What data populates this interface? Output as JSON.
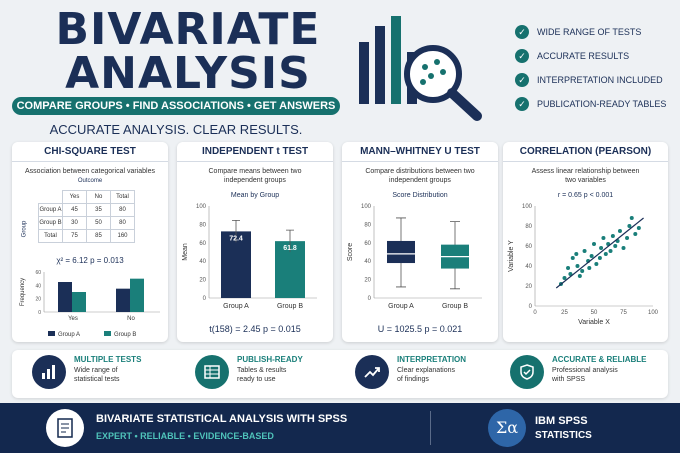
{
  "header": {
    "title_line1": "BIVARIATE",
    "title_line2": "ANALYSIS",
    "pill": "COMPARE GROUPS • FIND ASSOCIATIONS • GET ANSWERS",
    "tagline": "ACCURATE ANALYSIS. CLEAR RESULTS."
  },
  "features": [
    "WIDE RANGE OF TESTS",
    "ACCURATE RESULTS",
    "INTERPRETATION INCLUDED",
    "PUBLICATION-READY TABLES"
  ],
  "colors": {
    "navy": "#1b2f57",
    "teal": "#1a7f7a",
    "footer": "#13284e"
  },
  "cards": {
    "chi": {
      "title": "CHI-SQUARE TEST",
      "subtitle": "Association between categorical variables",
      "outcome": "Outcome",
      "group": "Group",
      "cols": [
        "Yes",
        "No",
        "Total"
      ],
      "rows": [
        {
          "label": "Group A",
          "vals": [
            "45",
            "35",
            "80"
          ]
        },
        {
          "label": "Group B",
          "vals": [
            "30",
            "50",
            "80"
          ]
        },
        {
          "label": "Total",
          "vals": [
            "75",
            "85",
            "160"
          ]
        }
      ],
      "stats": "χ² = 6.12     p = 0.013",
      "ylabel": "Frequency",
      "legend_a": "Group A",
      "legend_b": "Group B"
    },
    "ttest": {
      "title": "INDEPENDENT t TEST",
      "subtitle": "Compare means between two independent groups",
      "chart_title": "Mean by Group",
      "ylabel": "Mean",
      "stats": "t(158) = 2.45     p = 0.015"
    },
    "mw": {
      "title": "MANN–WHITNEY U TEST",
      "subtitle": "Compare distributions between two independent groups",
      "chart_title": "Score Distribution",
      "ylabel": "Score",
      "stats": "U = 1025.5     p = 0.021"
    },
    "corr": {
      "title": "CORRELATION (PEARSON)",
      "subtitle": "Assess linear relationship between two variables",
      "stats": "r = 0.65     p < 0.001",
      "xlabel": "Variable X",
      "ylabel": "Variable Y"
    }
  },
  "chart_data": [
    {
      "type": "bar",
      "categories": [
        "Yes",
        "No"
      ],
      "series": [
        {
          "name": "Group A",
          "values": [
            45,
            35
          ]
        },
        {
          "name": "Group B",
          "values": [
            30,
            50
          ]
        }
      ],
      "title": "",
      "xlabel": "",
      "ylabel": "Frequency",
      "ylim": [
        0,
        60
      ],
      "yticks": [
        0,
        20,
        40,
        60
      ]
    },
    {
      "type": "bar",
      "categories": [
        "Group A",
        "Group B"
      ],
      "values": [
        72.4,
        61.8
      ],
      "labels": [
        "72.4",
        "61.8"
      ],
      "errors": [
        12,
        12
      ],
      "title": "Mean by Group",
      "ylabel": "Mean",
      "ylim": [
        0,
        100
      ],
      "yticks": [
        0,
        20,
        40,
        60,
        80,
        100
      ]
    },
    {
      "type": "box",
      "categories": [
        "Group A",
        "Group B"
      ],
      "boxes": [
        {
          "min": 12,
          "q1": 38,
          "median": 48,
          "q3": 62,
          "max": 87
        },
        {
          "min": 10,
          "q1": 32,
          "median": 45,
          "q3": 58,
          "max": 83
        }
      ],
      "title": "Score Distribution",
      "ylabel": "Score",
      "ylim": [
        0,
        100
      ],
      "yticks": [
        0,
        20,
        40,
        60,
        80,
        100
      ]
    },
    {
      "type": "scatter",
      "title": "",
      "xlabel": "Variable X",
      "ylabel": "Variable Y",
      "xlim": [
        0,
        100
      ],
      "ylim": [
        0,
        100
      ],
      "xticks": [
        0,
        25,
        50,
        75,
        100
      ],
      "yticks": [
        0,
        20,
        40,
        60,
        80,
        100
      ],
      "points": [
        [
          22,
          22
        ],
        [
          25,
          28
        ],
        [
          28,
          38
        ],
        [
          30,
          32
        ],
        [
          32,
          48
        ],
        [
          35,
          52
        ],
        [
          36,
          40
        ],
        [
          38,
          30
        ],
        [
          40,
          35
        ],
        [
          42,
          55
        ],
        [
          45,
          45
        ],
        [
          46,
          38
        ],
        [
          48,
          50
        ],
        [
          50,
          62
        ],
        [
          52,
          42
        ],
        [
          55,
          48
        ],
        [
          56,
          58
        ],
        [
          58,
          68
        ],
        [
          60,
          52
        ],
        [
          62,
          62
        ],
        [
          64,
          55
        ],
        [
          66,
          70
        ],
        [
          68,
          60
        ],
        [
          70,
          65
        ],
        [
          72,
          75
        ],
        [
          75,
          58
        ],
        [
          78,
          68
        ],
        [
          80,
          80
        ],
        [
          82,
          88
        ],
        [
          85,
          72
        ],
        [
          88,
          78
        ]
      ],
      "trend": [
        [
          18,
          18
        ],
        [
          92,
          88
        ]
      ]
    }
  ],
  "bottom": [
    {
      "title": "MULTIPLE TESTS",
      "text1": "Wide range of",
      "text2": "statistical tests"
    },
    {
      "title": "PUBLISH-READY",
      "text1": "Tables & results",
      "text2": "ready to use"
    },
    {
      "title": "INTERPRETATION",
      "text1": "Clear explanations",
      "text2": "of findings"
    },
    {
      "title": "ACCURATE & RELIABLE",
      "text1": "Professional analysis",
      "text2": "with SPSS"
    }
  ],
  "footer": {
    "title": "BIVARIATE STATISTICAL ANALYSIS WITH SPSS",
    "subtitle": "EXPERT • RELIABLE • EVIDENCE-BASED",
    "ibm1": "IBM SPSS",
    "ibm2": "STATISTICS",
    "sigma": "Σα"
  }
}
